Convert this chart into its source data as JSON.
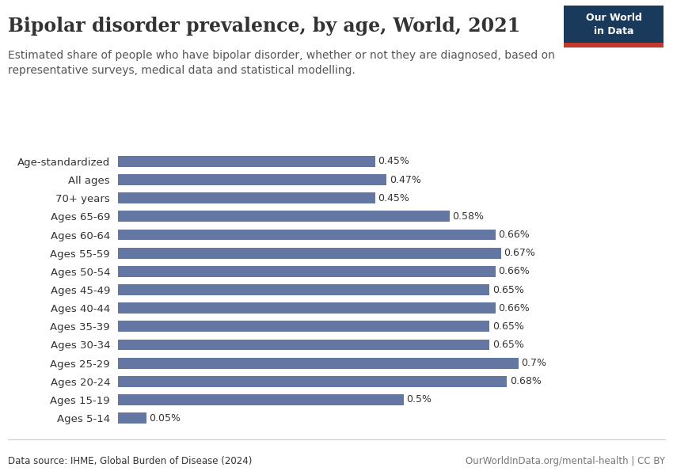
{
  "title": "Bipolar disorder prevalence, by age, World, 2021",
  "subtitle": "Estimated share of people who have bipolar disorder, whether or not they are diagnosed, based on\nrepresentative surveys, medical data and statistical modelling.",
  "categories": [
    "Age-standardized",
    "All ages",
    "70+ years",
    "Ages 65-69",
    "Ages 60-64",
    "Ages 55-59",
    "Ages 50-54",
    "Ages 45-49",
    "Ages 40-44",
    "Ages 35-39",
    "Ages 30-34",
    "Ages 25-29",
    "Ages 20-24",
    "Ages 15-19",
    "Ages 5-14"
  ],
  "values": [
    0.45,
    0.47,
    0.45,
    0.58,
    0.66,
    0.67,
    0.66,
    0.65,
    0.66,
    0.65,
    0.65,
    0.7,
    0.68,
    0.5,
    0.05
  ],
  "labels": [
    "0.45%",
    "0.47%",
    "0.45%",
    "0.58%",
    "0.66%",
    "0.67%",
    "0.66%",
    "0.65%",
    "0.66%",
    "0.65%",
    "0.65%",
    "0.7%",
    "0.68%",
    "0.5%",
    "0.05%"
  ],
  "bar_color": "#6477a3",
  "background_color": "#ffffff",
  "text_color": "#333333",
  "source_text": "Data source: IHME, Global Burden of Disease (2024)",
  "source_right": "OurWorldInData.org/mental-health | CC BY",
  "xlim": [
    0,
    0.8
  ],
  "title_fontsize": 17,
  "subtitle_fontsize": 10,
  "label_fontsize": 9,
  "tick_fontsize": 9.5,
  "source_fontsize": 8.5,
  "owid_box_color": "#1a3a5c",
  "owid_stripe_color": "#c0392b",
  "owid_text": "Our World\nin Data"
}
